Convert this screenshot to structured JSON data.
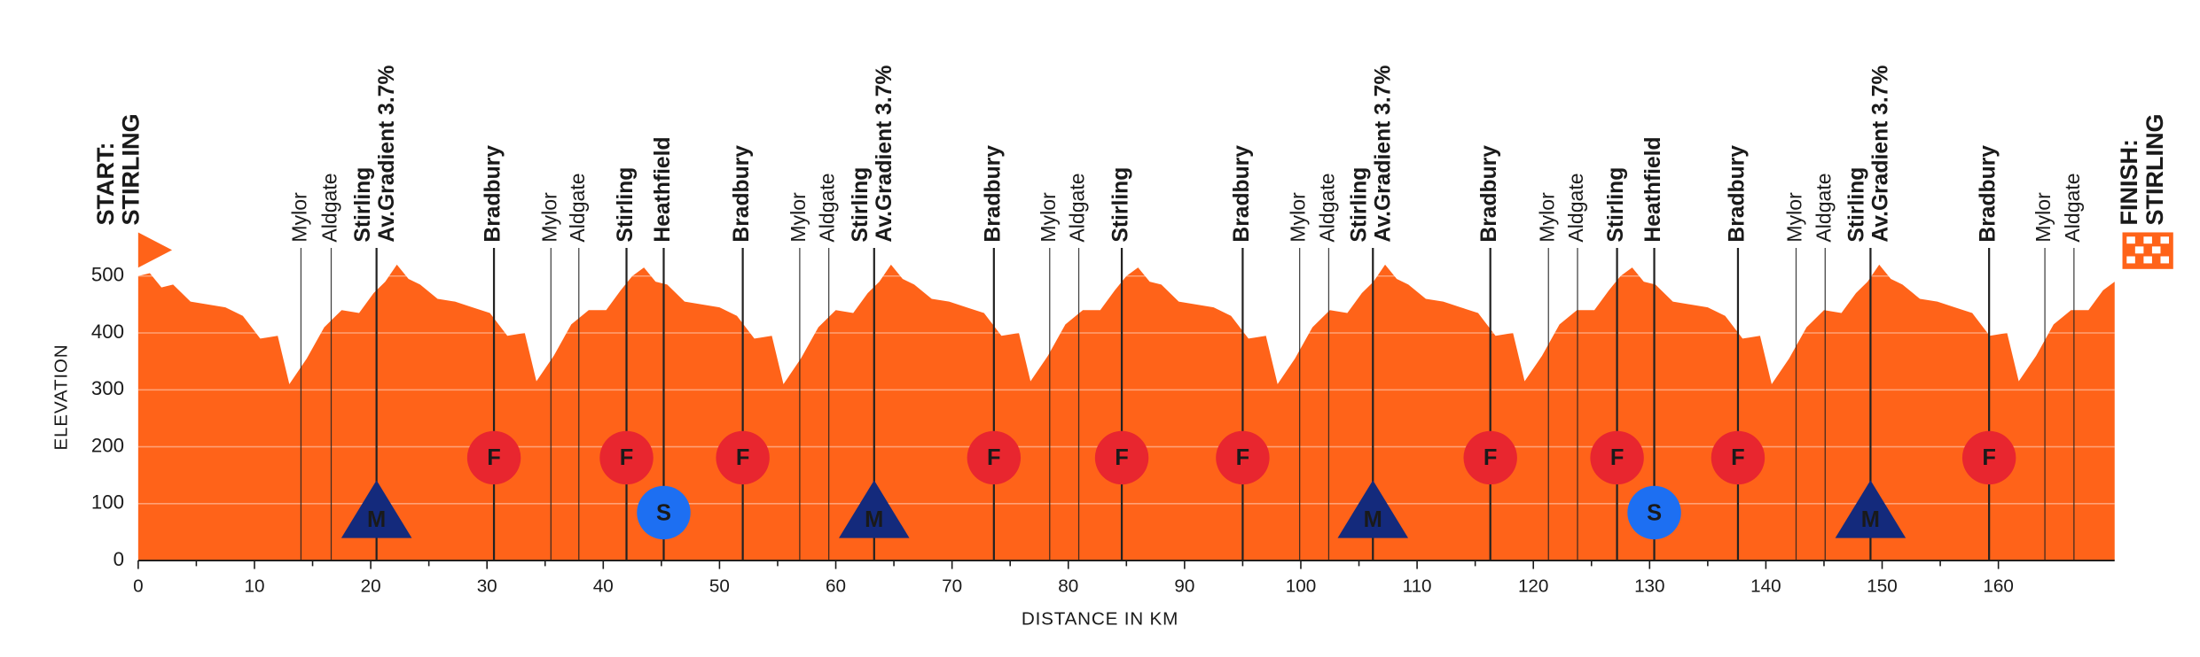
{
  "chart_data": {
    "type": "area",
    "y_label": "ELEVATION",
    "x_label": "DISTANCE IN KM",
    "color": "#ff6319",
    "grid": true,
    "xlim": [
      0,
      170
    ],
    "ylim": [
      0,
      560
    ],
    "xticks": [
      0,
      10,
      20,
      30,
      40,
      50,
      60,
      70,
      80,
      90,
      100,
      110,
      120,
      130,
      140,
      150,
      160
    ],
    "yticks": [
      0,
      100,
      200,
      300,
      400,
      500
    ],
    "x": [
      0,
      1,
      2,
      3,
      4.5,
      6,
      7.5,
      9,
      10.5,
      12,
      13,
      14.5,
      16,
      17.5,
      19,
      20.25,
      21.25,
      22.25,
      23.25,
      24.25,
      25.75,
      27.25,
      28.75,
      30.25,
      31.75,
      33.25,
      34.25,
      35.75,
      37.25,
      38.75,
      40.25,
      41.5,
      42.5,
      43.5,
      44.5,
      45.5,
      47,
      48.5,
      50,
      51.5,
      53,
      54.5,
      55.5,
      57,
      58.5,
      60,
      61.5,
      62.75,
      63.75,
      64.75,
      65.75,
      66.75,
      68.25,
      69.75,
      71.25,
      72.75,
      74.25,
      75.75,
      76.75,
      78.25,
      79.75,
      81.25,
      82.75,
      84,
      85,
      86,
      87,
      88,
      89.5,
      91,
      92.5,
      94,
      95.5,
      97,
      98,
      99.5,
      101,
      102.5,
      104,
      105.25,
      106.25,
      107.25,
      108.25,
      109.25,
      110.75,
      112.25,
      113.75,
      115.25,
      116.75,
      118.25,
      119.25,
      120.75,
      122.25,
      123.75,
      125.25,
      126.5,
      127.5,
      128.5,
      129.5,
      130.5,
      132,
      133.5,
      135,
      136.5,
      138,
      139.5,
      140.5,
      142,
      143.5,
      145,
      146.5,
      147.75,
      148.75,
      149.75,
      150.75,
      151.75,
      153.25,
      154.75,
      156.25,
      157.75,
      159.25,
      160.75,
      161.75,
      163.25,
      164.75,
      166.25,
      167.75,
      169,
      170
    ],
    "values": [
      500,
      505,
      480,
      485,
      455,
      450,
      445,
      430,
      390,
      395,
      310,
      355,
      410,
      440,
      435,
      470,
      490,
      520,
      495,
      485,
      460,
      455,
      445,
      435,
      395,
      400,
      315,
      360,
      415,
      440,
      440,
      475,
      500,
      515,
      490,
      485,
      455,
      450,
      445,
      430,
      390,
      395,
      310,
      355,
      410,
      440,
      435,
      470,
      490,
      520,
      495,
      485,
      460,
      455,
      445,
      435,
      395,
      400,
      315,
      360,
      415,
      440,
      440,
      475,
      500,
      515,
      490,
      485,
      455,
      450,
      445,
      430,
      390,
      395,
      310,
      355,
      410,
      440,
      435,
      470,
      490,
      520,
      495,
      485,
      460,
      455,
      445,
      435,
      395,
      400,
      315,
      360,
      415,
      440,
      440,
      475,
      500,
      515,
      490,
      485,
      455,
      450,
      445,
      430,
      390,
      395,
      310,
      355,
      410,
      440,
      435,
      470,
      490,
      520,
      495,
      485,
      460,
      455,
      445,
      435,
      395,
      400,
      315,
      360,
      415,
      440,
      440,
      475,
      490
    ],
    "start_label": [
      "START:",
      "STIRLING"
    ],
    "finish_label": [
      "FINISH:",
      "STIRLING"
    ],
    "icon_colors": {
      "F": "#e8262f",
      "S": "#1d6ff2",
      "M": "#142a7c"
    },
    "annotations": [
      {
        "x": 14,
        "lines": [
          "Mylor"
        ],
        "major": false
      },
      {
        "x": 16.6,
        "lines": [
          "Aldgate"
        ],
        "major": false
      },
      {
        "x": 20.5,
        "lines": [
          "Stirling",
          "Av.Gradient 3.7%"
        ],
        "major": true,
        "icon": "M"
      },
      {
        "x": 30.6,
        "lines": [
          "Bradbury"
        ],
        "major": true,
        "icon": "F"
      },
      {
        "x": 35.5,
        "lines": [
          "Mylor"
        ],
        "major": false
      },
      {
        "x": 37.9,
        "lines": [
          "Aldgate"
        ],
        "major": false
      },
      {
        "x": 42,
        "lines": [
          "Stirling"
        ],
        "major": true,
        "icon": "F"
      },
      {
        "x": 45.2,
        "lines": [
          "Heathfield"
        ],
        "major": true,
        "icon": "S"
      },
      {
        "x": 52,
        "lines": [
          "Bradbury"
        ],
        "major": true,
        "icon": "F"
      },
      {
        "x": 56.9,
        "lines": [
          "Mylor"
        ],
        "major": false
      },
      {
        "x": 59.4,
        "lines": [
          "Aldgate"
        ],
        "major": false
      },
      {
        "x": 63.3,
        "lines": [
          "Stirling",
          "Av.Gradient 3.7%"
        ],
        "major": true,
        "icon": "M"
      },
      {
        "x": 73.6,
        "lines": [
          "Bradbury"
        ],
        "major": true,
        "icon": "F"
      },
      {
        "x": 78.4,
        "lines": [
          "Mylor"
        ],
        "major": false
      },
      {
        "x": 80.9,
        "lines": [
          "Aldgate"
        ],
        "major": false
      },
      {
        "x": 84.6,
        "lines": [
          "Stirling"
        ],
        "major": true,
        "icon": "F"
      },
      {
        "x": 95,
        "lines": [
          "Bradbury"
        ],
        "major": true,
        "icon": "F"
      },
      {
        "x": 99.9,
        "lines": [
          "Mylor"
        ],
        "major": false
      },
      {
        "x": 102.4,
        "lines": [
          "Aldgate"
        ],
        "major": false
      },
      {
        "x": 106.2,
        "lines": [
          "Stirling",
          "Av.Gradient 3.7%"
        ],
        "major": true,
        "icon": "M"
      },
      {
        "x": 116.3,
        "lines": [
          "Bradbury"
        ],
        "major": true,
        "icon": "F"
      },
      {
        "x": 121.3,
        "lines": [
          "Mylor"
        ],
        "major": false
      },
      {
        "x": 123.8,
        "lines": [
          "Aldgate"
        ],
        "major": false
      },
      {
        "x": 127.2,
        "lines": [
          "Stirling"
        ],
        "major": true,
        "icon": "F"
      },
      {
        "x": 130.4,
        "lines": [
          "Heathfield"
        ],
        "major": true,
        "icon": "S"
      },
      {
        "x": 137.6,
        "lines": [
          "Bradbury"
        ],
        "major": true,
        "icon": "F"
      },
      {
        "x": 142.6,
        "lines": [
          "Mylor"
        ],
        "major": false
      },
      {
        "x": 145.1,
        "lines": [
          "Aldgate"
        ],
        "major": false
      },
      {
        "x": 149,
        "lines": [
          "Stirling",
          "Av.Gradient 3.7%"
        ],
        "major": true,
        "icon": "M"
      },
      {
        "x": 159.2,
        "lines": [
          "Bradbury"
        ],
        "major": true,
        "icon": "F"
      },
      {
        "x": 164,
        "lines": [
          "Mylor"
        ],
        "major": false
      },
      {
        "x": 166.5,
        "lines": [
          "Aldgate"
        ],
        "major": false
      }
    ]
  }
}
